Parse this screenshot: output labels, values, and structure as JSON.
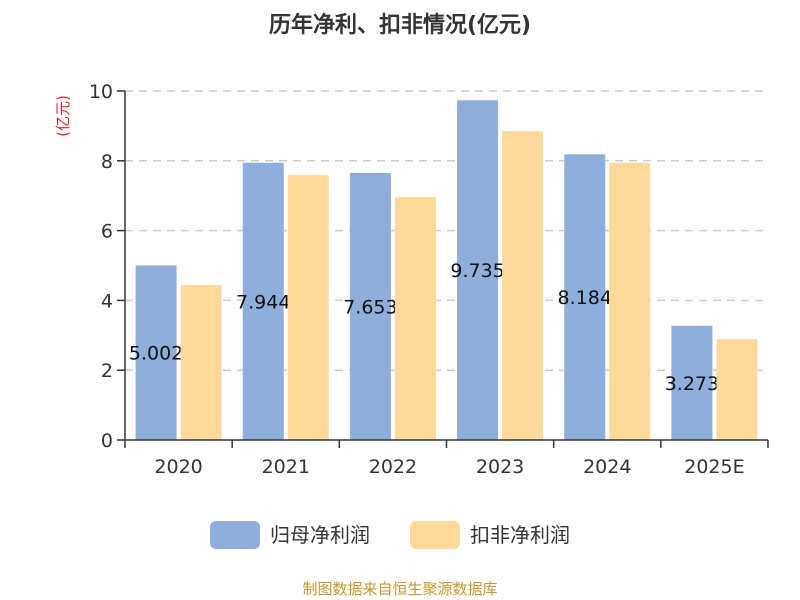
{
  "chart_data": {
    "type": "bar",
    "title": "历年净利、扣非情况(亿元)",
    "ylabel": "(亿元)",
    "xlabel": "",
    "ylim": [
      0,
      10
    ],
    "yticks": [
      0,
      2,
      4,
      6,
      8,
      10
    ],
    "grid": true,
    "legend_position": "bottom",
    "categories": [
      "2020",
      "2021",
      "2022",
      "2023",
      "2024",
      "2025E"
    ],
    "series": [
      {
        "name": "归母净利润",
        "color": "#8eaedb",
        "values": [
          5.002,
          7.944,
          7.653,
          9.735,
          8.184,
          3.273
        ],
        "labels": [
          "5.002",
          "7.944",
          "7.653",
          "9.735",
          "8.184",
          "3.273"
        ]
      },
      {
        "name": "扣非净利润",
        "color": "#fed999",
        "values": [
          4.44,
          7.59,
          6.96,
          8.85,
          7.94,
          2.89
        ]
      }
    ],
    "source": "制图数据来自恒生聚源数据库"
  }
}
